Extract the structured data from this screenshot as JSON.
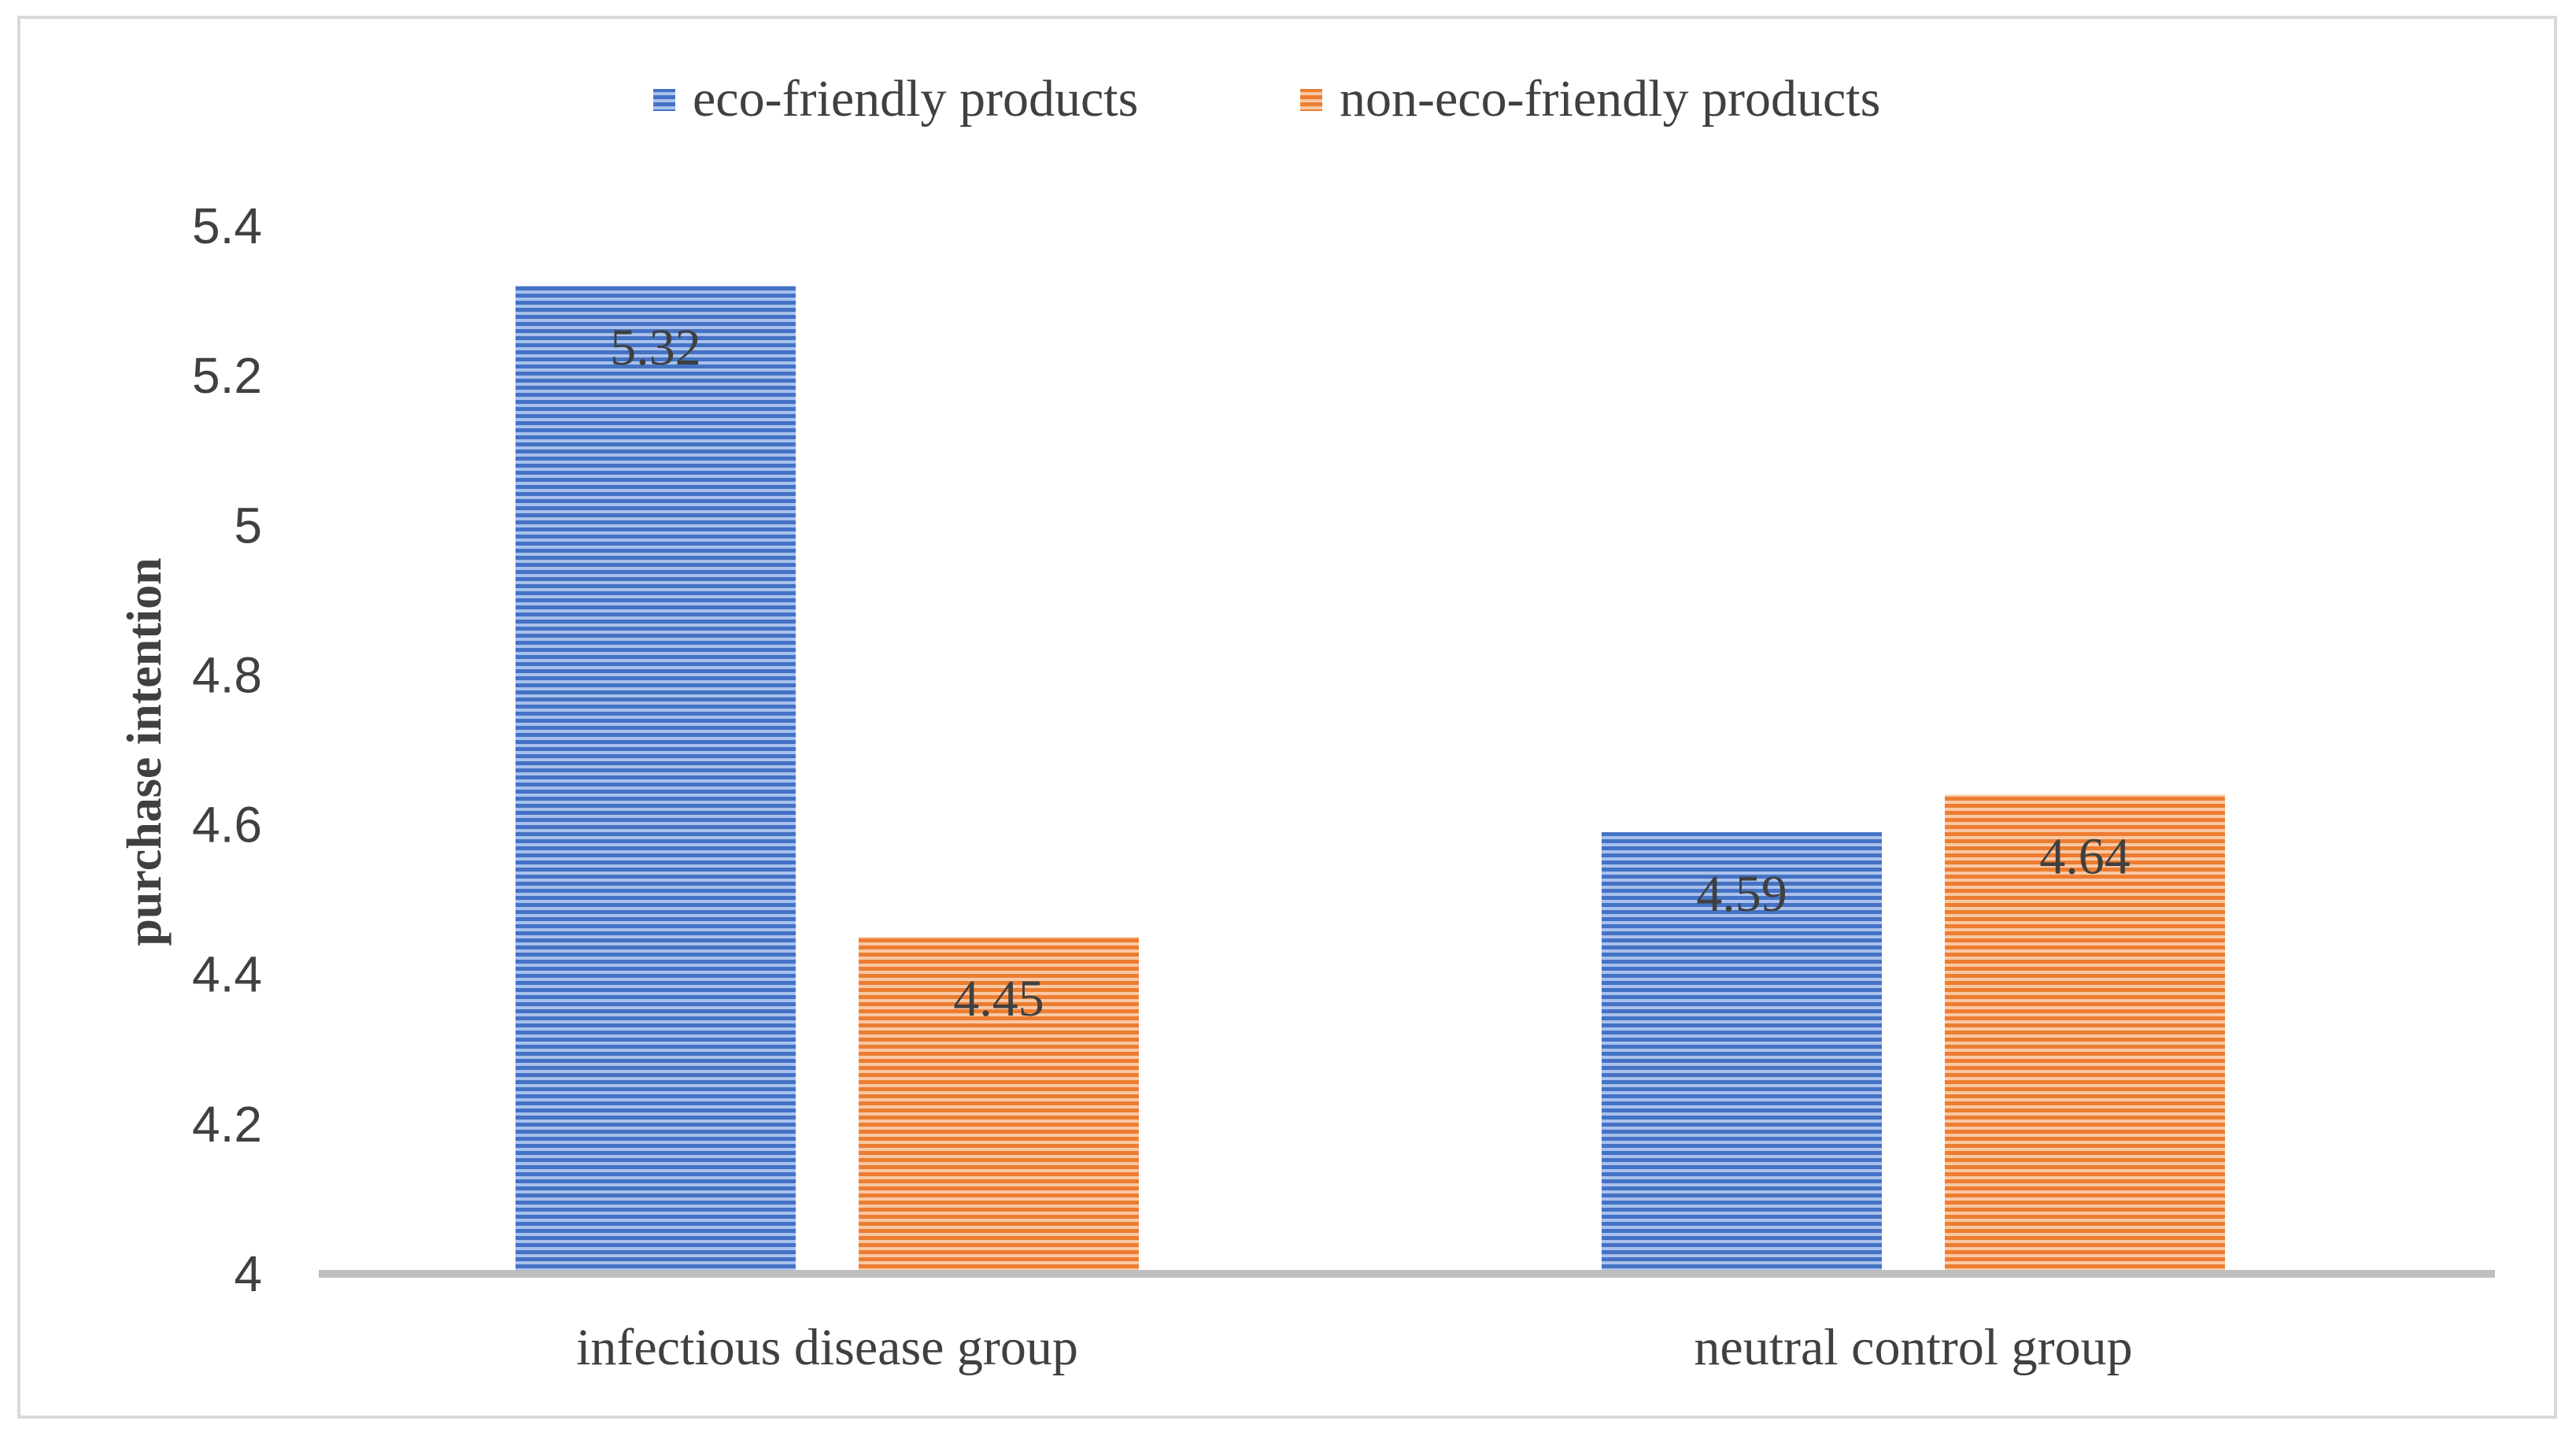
{
  "chart_data": {
    "type": "bar",
    "title": "",
    "xlabel": "",
    "ylabel": "purchase intention",
    "ylim": [
      4,
      5.4
    ],
    "yticks": [
      "4",
      "4.2",
      "4.4",
      "4.6",
      "4.8",
      "5",
      "5.2",
      "5.4"
    ],
    "grid": false,
    "legend_position": "top-center",
    "categories": [
      "infectious disease group",
      "neutral control group"
    ],
    "series": [
      {
        "name": "eco-friendly products",
        "color": "#4472c4",
        "values": [
          5.32,
          4.59
        ],
        "labels": [
          "5.32",
          "4.59"
        ]
      },
      {
        "name": "non-eco-friendly products",
        "color": "#ed7d31",
        "values": [
          4.45,
          4.64
        ],
        "labels": [
          "4.45",
          "4.64"
        ]
      }
    ]
  }
}
